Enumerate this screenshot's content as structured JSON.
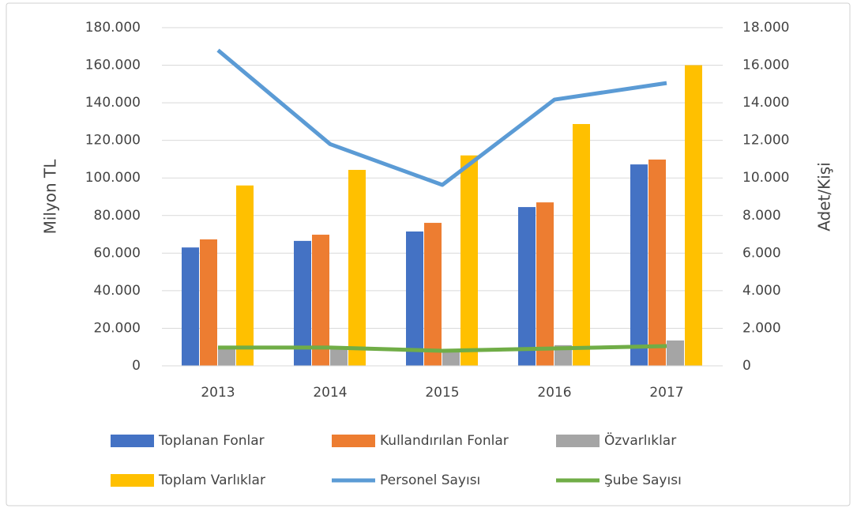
{
  "chart_data": {
    "type": "bar",
    "categories": [
      "2013",
      "2014",
      "2015",
      "2016",
      "2017"
    ],
    "y_label": "Milyon TL",
    "y2_label": "Adet/Kişi",
    "series": [
      {
        "name": "Toplanan Fonlar",
        "color": "#4472c4",
        "type": "bar",
        "values": [
          63000,
          66500,
          71500,
          84500,
          107200
        ]
      },
      {
        "name": "Kullandırılan Fonlar",
        "color": "#ed7d31",
        "type": "bar",
        "values": [
          67300,
          69800,
          76100,
          87000,
          109800
        ]
      },
      {
        "name": "Özvarlıklar",
        "color": "#a5a5a5",
        "type": "bar",
        "values": [
          9000,
          10000,
          9000,
          11000,
          13500
        ]
      },
      {
        "name": "Toplam Varlıklar",
        "color": "#ffc000",
        "type": "bar",
        "values": [
          96000,
          104300,
          112000,
          128700,
          160000
        ]
      },
      {
        "name": "Personel Sayısı",
        "color": "#5b9bd5",
        "type": "line",
        "axis": "y2",
        "values": [
          16800,
          11800,
          9630,
          14170,
          15050
        ]
      },
      {
        "name": "Şube Sayısı",
        "color": "#70ad47",
        "type": "line",
        "axis": "y2",
        "values": [
          970,
          970,
          800,
          925,
          1050
        ]
      }
    ],
    "ylim": [
      0,
      180000
    ],
    "yticks": [
      0,
      {
        "value": 20000,
        "label": "20.000"
      },
      {
        "value": 40000,
        "label": "40.000"
      },
      {
        "value": 60000,
        "label": "60.000"
      },
      {
        "value": 80000,
        "label": "80.000"
      },
      {
        "value": 100000,
        "label": "100.000"
      },
      {
        "value": 120000,
        "label": "120.000"
      },
      {
        "value": 140000,
        "label": "140.000"
      },
      {
        "value": 160000,
        "label": "160.000"
      },
      {
        "value": 180000,
        "label": "180.000"
      }
    ],
    "y2lim": [
      0,
      18000
    ],
    "y2ticks": [
      0,
      {
        "value": 2000,
        "label": "2.000"
      },
      {
        "value": 4000,
        "label": "4.000"
      },
      {
        "value": 6000,
        "label": "6.000"
      },
      {
        "value": 8000,
        "label": "8.000"
      },
      {
        "value": 10000,
        "label": "10.000"
      },
      {
        "value": 12000,
        "label": "12.000"
      },
      {
        "value": 14000,
        "label": "14.000"
      },
      {
        "value": 16000,
        "label": "16.000"
      },
      {
        "value": 18000,
        "label": "18.000"
      }
    ],
    "grid": true
  }
}
